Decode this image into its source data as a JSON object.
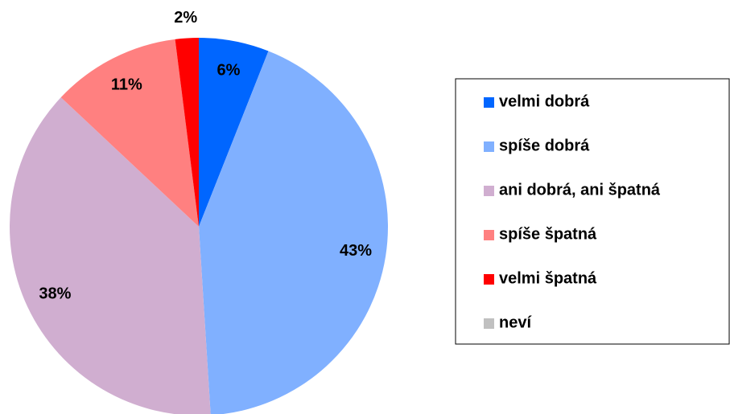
{
  "chart_data": {
    "type": "pie",
    "categories": [
      "velmi dobrá",
      "spíše dobrá",
      "ani dobrá, ani špatná",
      "spíše špatná",
      "velmi špatná",
      "neví"
    ],
    "values": [
      6,
      43,
      38,
      11,
      2,
      0
    ],
    "value_labels": [
      "6%",
      "43%",
      "38%",
      "11%",
      "2%",
      null
    ],
    "colors": [
      "#0066ff",
      "#80b0ff",
      "#d0aed0",
      "#ff8080",
      "#ff0000",
      "#c0c0c0"
    ],
    "legend": "right"
  }
}
